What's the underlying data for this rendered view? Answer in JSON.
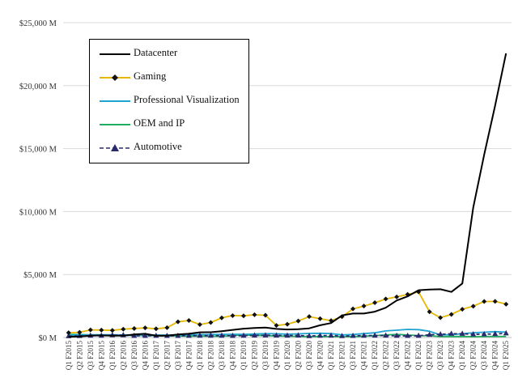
{
  "chart_data": {
    "type": "line",
    "title": "",
    "xlabel": "",
    "ylabel": "",
    "ylim": [
      0,
      25000
    ],
    "y_ticks": [
      "$0 M",
      "$5,000 M",
      "$10,000 M",
      "$15,000 M",
      "$20,000 M",
      "$25,000 M"
    ],
    "y_tick_values": [
      0,
      5000,
      10000,
      15000,
      20000,
      25000
    ],
    "grid": "horizontal",
    "legend_position": "top-left",
    "categories": [
      "Q1 F2015",
      "Q2 F2015",
      "Q3 F2015",
      "Q4 F2015",
      "Q1 F2016",
      "Q2 F2016",
      "Q3 F2016",
      "Q4 F2016",
      "Q1 F2017",
      "Q2 F2017",
      "Q3 F2017",
      "Q4 F2017",
      "Q1 F2018",
      "Q2 F2018",
      "Q3 F2018",
      "Q4 F2018",
      "Q1 F2019",
      "Q2 F2019",
      "Q3 F2019",
      "Q4 F2019",
      "Q1 F2020",
      "Q2 F2020",
      "Q3 F2020",
      "Q4 F2020",
      "Q1 F2021",
      "Q2 F2021",
      "Q3 F2021",
      "Q4 F2021",
      "Q1 F2022",
      "Q2 F2022",
      "Q3 F2022",
      "Q4 F2022",
      "Q1 F2023",
      "Q2 F2023",
      "Q3 F2023",
      "Q4 F2023",
      "Q1 F2024",
      "Q2 F2024",
      "Q3 F2024",
      "Q4 F2024",
      "Q1 F2025"
    ],
    "series": [
      {
        "name": "Datacenter",
        "color": "#000000",
        "marker": "none",
        "values": [
          57,
          84,
          144,
          166,
          145,
          143,
          240,
          296,
          143,
          151,
          240,
          296,
          409,
          416,
          501,
          606,
          701,
          760,
          792,
          679,
          634,
          655,
          726,
          968,
          1141,
          1752,
          1900,
          1903,
          2048,
          2366,
          2936,
          3263,
          3750,
          3806,
          3833,
          3616,
          4284,
          10323,
          14514,
          18404,
          22563
        ]
      },
      {
        "name": "Gaming",
        "color": "#e6b800",
        "marker": "diamond",
        "values": [
          380,
          412,
          603,
          590,
          566,
          660,
          714,
          763,
          687,
          781,
          1244,
          1348,
          1027,
          1186,
          1561,
          1739,
          1723,
          1805,
          1764,
          954,
          1055,
          1313,
          1659,
          1491,
          1339,
          1654,
          2271,
          2495,
          2760,
          3059,
          3221,
          3420,
          3620,
          2042,
          1574,
          1831,
          2240,
          2486,
          2856,
          2865,
          2647
        ]
      },
      {
        "name": "Professional Visualization",
        "color": "#1fa3d1",
        "marker": "none",
        "values": [
          180,
          200,
          210,
          220,
          210,
          200,
          200,
          210,
          190,
          190,
          200,
          220,
          230,
          240,
          250,
          254,
          251,
          281,
          305,
          293,
          266,
          291,
          324,
          331,
          307,
          203,
          236,
          308,
          372,
          519,
          577,
          643,
          622,
          496,
          200,
          226,
          295,
          379,
          416,
          463,
          427
        ]
      },
      {
        "name": "OEM and IP",
        "color": "#1fae5e",
        "marker": "none",
        "values": [
          240,
          235,
          200,
          190,
          180,
          175,
          160,
          155,
          140,
          130,
          120,
          110,
          105,
          100,
          95,
          160,
          200,
          170,
          150,
          120,
          100,
          90,
          80,
          75,
          70,
          70,
          80,
          100,
          150,
          200,
          250,
          200,
          150,
          140,
          70,
          84,
          77,
          66,
          73,
          90,
          78
        ]
      },
      {
        "name": "Automotive",
        "color": "#2a2a6e",
        "marker": "triangle",
        "dashed": true,
        "values": [
          103,
          121,
          145,
          148,
          183,
          184,
          129,
          128,
          140,
          127,
          127,
          140,
          144,
          142,
          144,
          132,
          145,
          161,
          172,
          163,
          155,
          163,
          111,
          145,
          155,
          111,
          125,
          145,
          154,
          152,
          135,
          125,
          138,
          220,
          251,
          294,
          296,
          253,
          261,
          281,
          329
        ]
      }
    ]
  }
}
